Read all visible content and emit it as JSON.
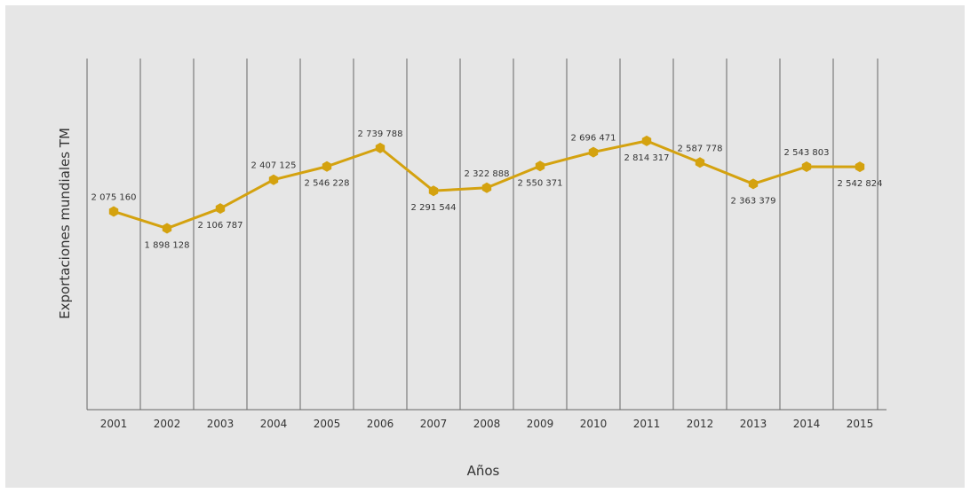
{
  "chart_data": {
    "type": "line",
    "title": "",
    "xlabel": "Años",
    "ylabel": "Exportaciones mundiales TM",
    "categories": [
      "2001",
      "2002",
      "2003",
      "2004",
      "2005",
      "2006",
      "2007",
      "2008",
      "2009",
      "2010",
      "2011",
      "2012",
      "2013",
      "2014",
      "2015"
    ],
    "values": [
      2075160,
      1898128,
      2106787,
      2407125,
      2546228,
      2739788,
      2291544,
      2322888,
      2550371,
      2696471,
      2814317,
      2587778,
      2363379,
      2543803,
      2542824
    ],
    "data_labels": [
      "2 075 160",
      "1 898 128",
      "2 106 787",
      "2 407 125",
      "2 546 228",
      "2 739 788",
      "2 291 544",
      "2 322 888",
      "2 550 371",
      "2 696 471",
      "2 814 317",
      "2 587 778",
      "2 363 379",
      "2 543 803",
      "2 542 824"
    ],
    "label_positions": [
      "above",
      "below",
      "below",
      "above",
      "below",
      "above",
      "below",
      "above",
      "below",
      "above",
      "below",
      "above",
      "below",
      "above",
      "below"
    ],
    "ylim": [
      0,
      3500000
    ],
    "grid": "vertical",
    "legend": "none",
    "series_color": "#d4a20f",
    "grid_color": "#666666"
  }
}
